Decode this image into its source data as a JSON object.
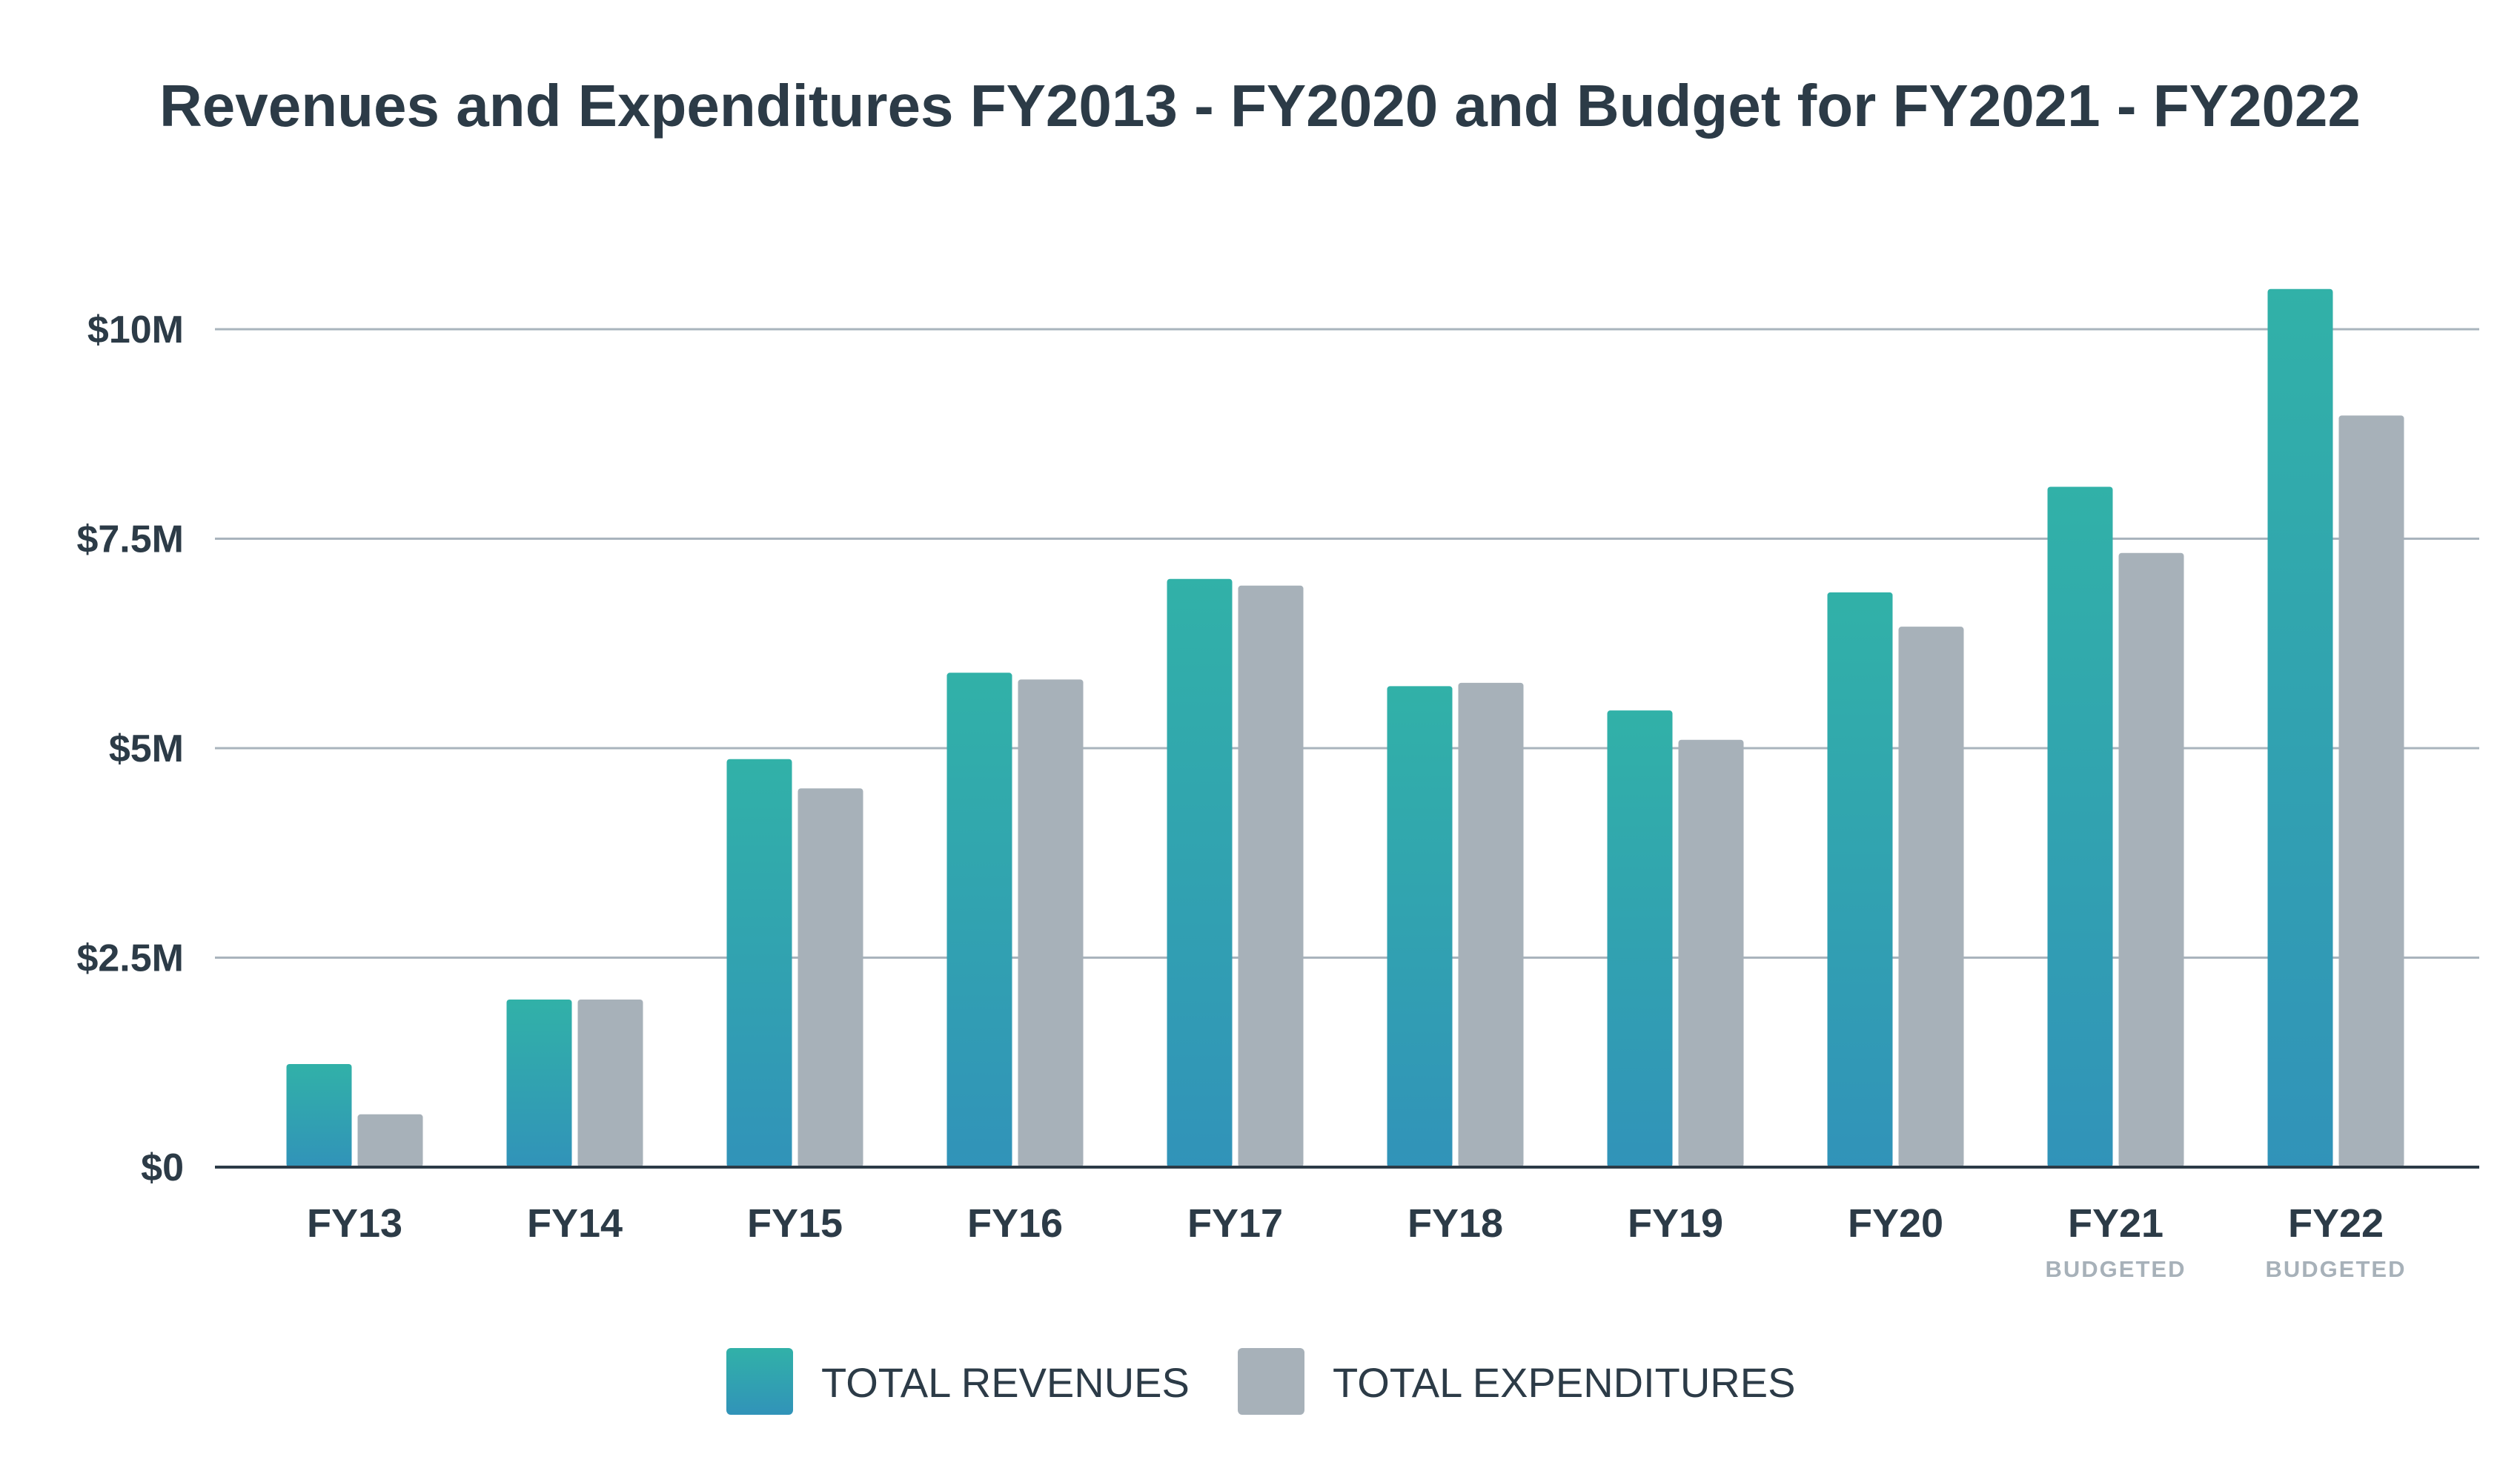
{
  "chart_data": {
    "type": "bar",
    "title": "Revenues and Expenditures FY2013 - FY2020 and Budget for FY2021 - FY2022",
    "categories": [
      "FY13",
      "FY14",
      "FY15",
      "FY16",
      "FY17",
      "FY18",
      "FY19",
      "FY20",
      "FY21",
      "FY22"
    ],
    "category_sublabels": [
      "",
      "",
      "",
      "",
      "",
      "",
      "",
      "",
      "BUDGETED",
      "BUDGETED"
    ],
    "series": [
      {
        "name": "TOTAL REVENUES",
        "values": [
          1.23,
          2.0,
          4.87,
          5.9,
          7.02,
          5.74,
          5.45,
          6.86,
          8.12,
          10.48
        ]
      },
      {
        "name": "TOTAL EXPENDITURES",
        "values": [
          0.63,
          2.0,
          4.52,
          5.82,
          6.94,
          5.78,
          5.1,
          6.45,
          7.33,
          8.97
        ]
      }
    ],
    "unit": "$M",
    "ylim": [
      0,
      10
    ],
    "yticks": [
      0,
      2.5,
      5,
      7.5,
      10
    ],
    "ytick_labels": [
      "$0",
      "$2.5M",
      "$5M",
      "$7.5M",
      "$10M"
    ],
    "xlabel": "",
    "ylabel": "",
    "grid": true,
    "legend_position": "bottom-center"
  },
  "colors": {
    "revenue_top": "#31b1a8",
    "revenue_bottom": "#3193b9",
    "expenditure": "#a7b1b9",
    "grid": "#a9b4bd",
    "axis": "#2c3b47"
  }
}
